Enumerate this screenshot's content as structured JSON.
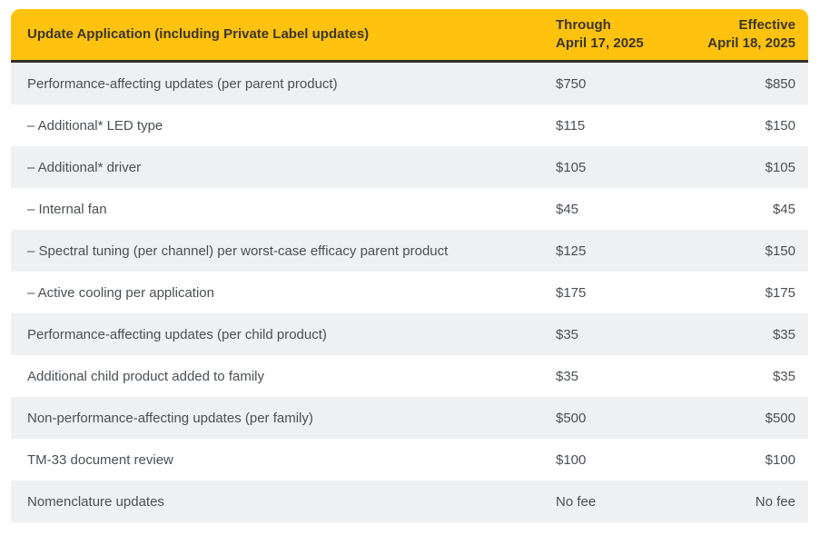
{
  "colors": {
    "header_bg": "#ffc20e",
    "header_border": "#33302a",
    "header_text": "#3b352a",
    "body_text": "#4a4f55",
    "row_shade": "#eff0f1"
  },
  "table": {
    "header": {
      "title": "Update Application (including Private Label updates)",
      "through_line1": "Through",
      "through_line2": "April 17, 2025",
      "effective_line1": "Effective",
      "effective_line2": "April 18, 2025"
    },
    "rows": [
      {
        "label": "Performance-affecting updates (per parent product)",
        "through": "$750",
        "effective": "$850"
      },
      {
        "label": "– Additional* LED type",
        "through": "$115",
        "effective": "$150"
      },
      {
        "label": "– Additional* driver",
        "through": "$105",
        "effective": "$105"
      },
      {
        "label": "– Internal fan",
        "through": "$45",
        "effective": "$45"
      },
      {
        "label": "– Spectral tuning (per channel) per worst-case efficacy parent product",
        "through": "$125",
        "effective": "$150"
      },
      {
        "label": "– Active cooling per application",
        "through": "$175",
        "effective": "$175"
      },
      {
        "label": "Performance-affecting updates (per child product)",
        "through": "$35",
        "effective": "$35"
      },
      {
        "label": "Additional child product added to family",
        "through": "$35",
        "effective": "$35"
      },
      {
        "label": "Non-performance-affecting updates (per family)",
        "through": "$500",
        "effective": "$500"
      },
      {
        "label": "TM-33 document review",
        "through": "$100",
        "effective": "$100"
      },
      {
        "label": "Nomenclature updates",
        "through": "No fee",
        "effective": "No fee"
      }
    ]
  }
}
